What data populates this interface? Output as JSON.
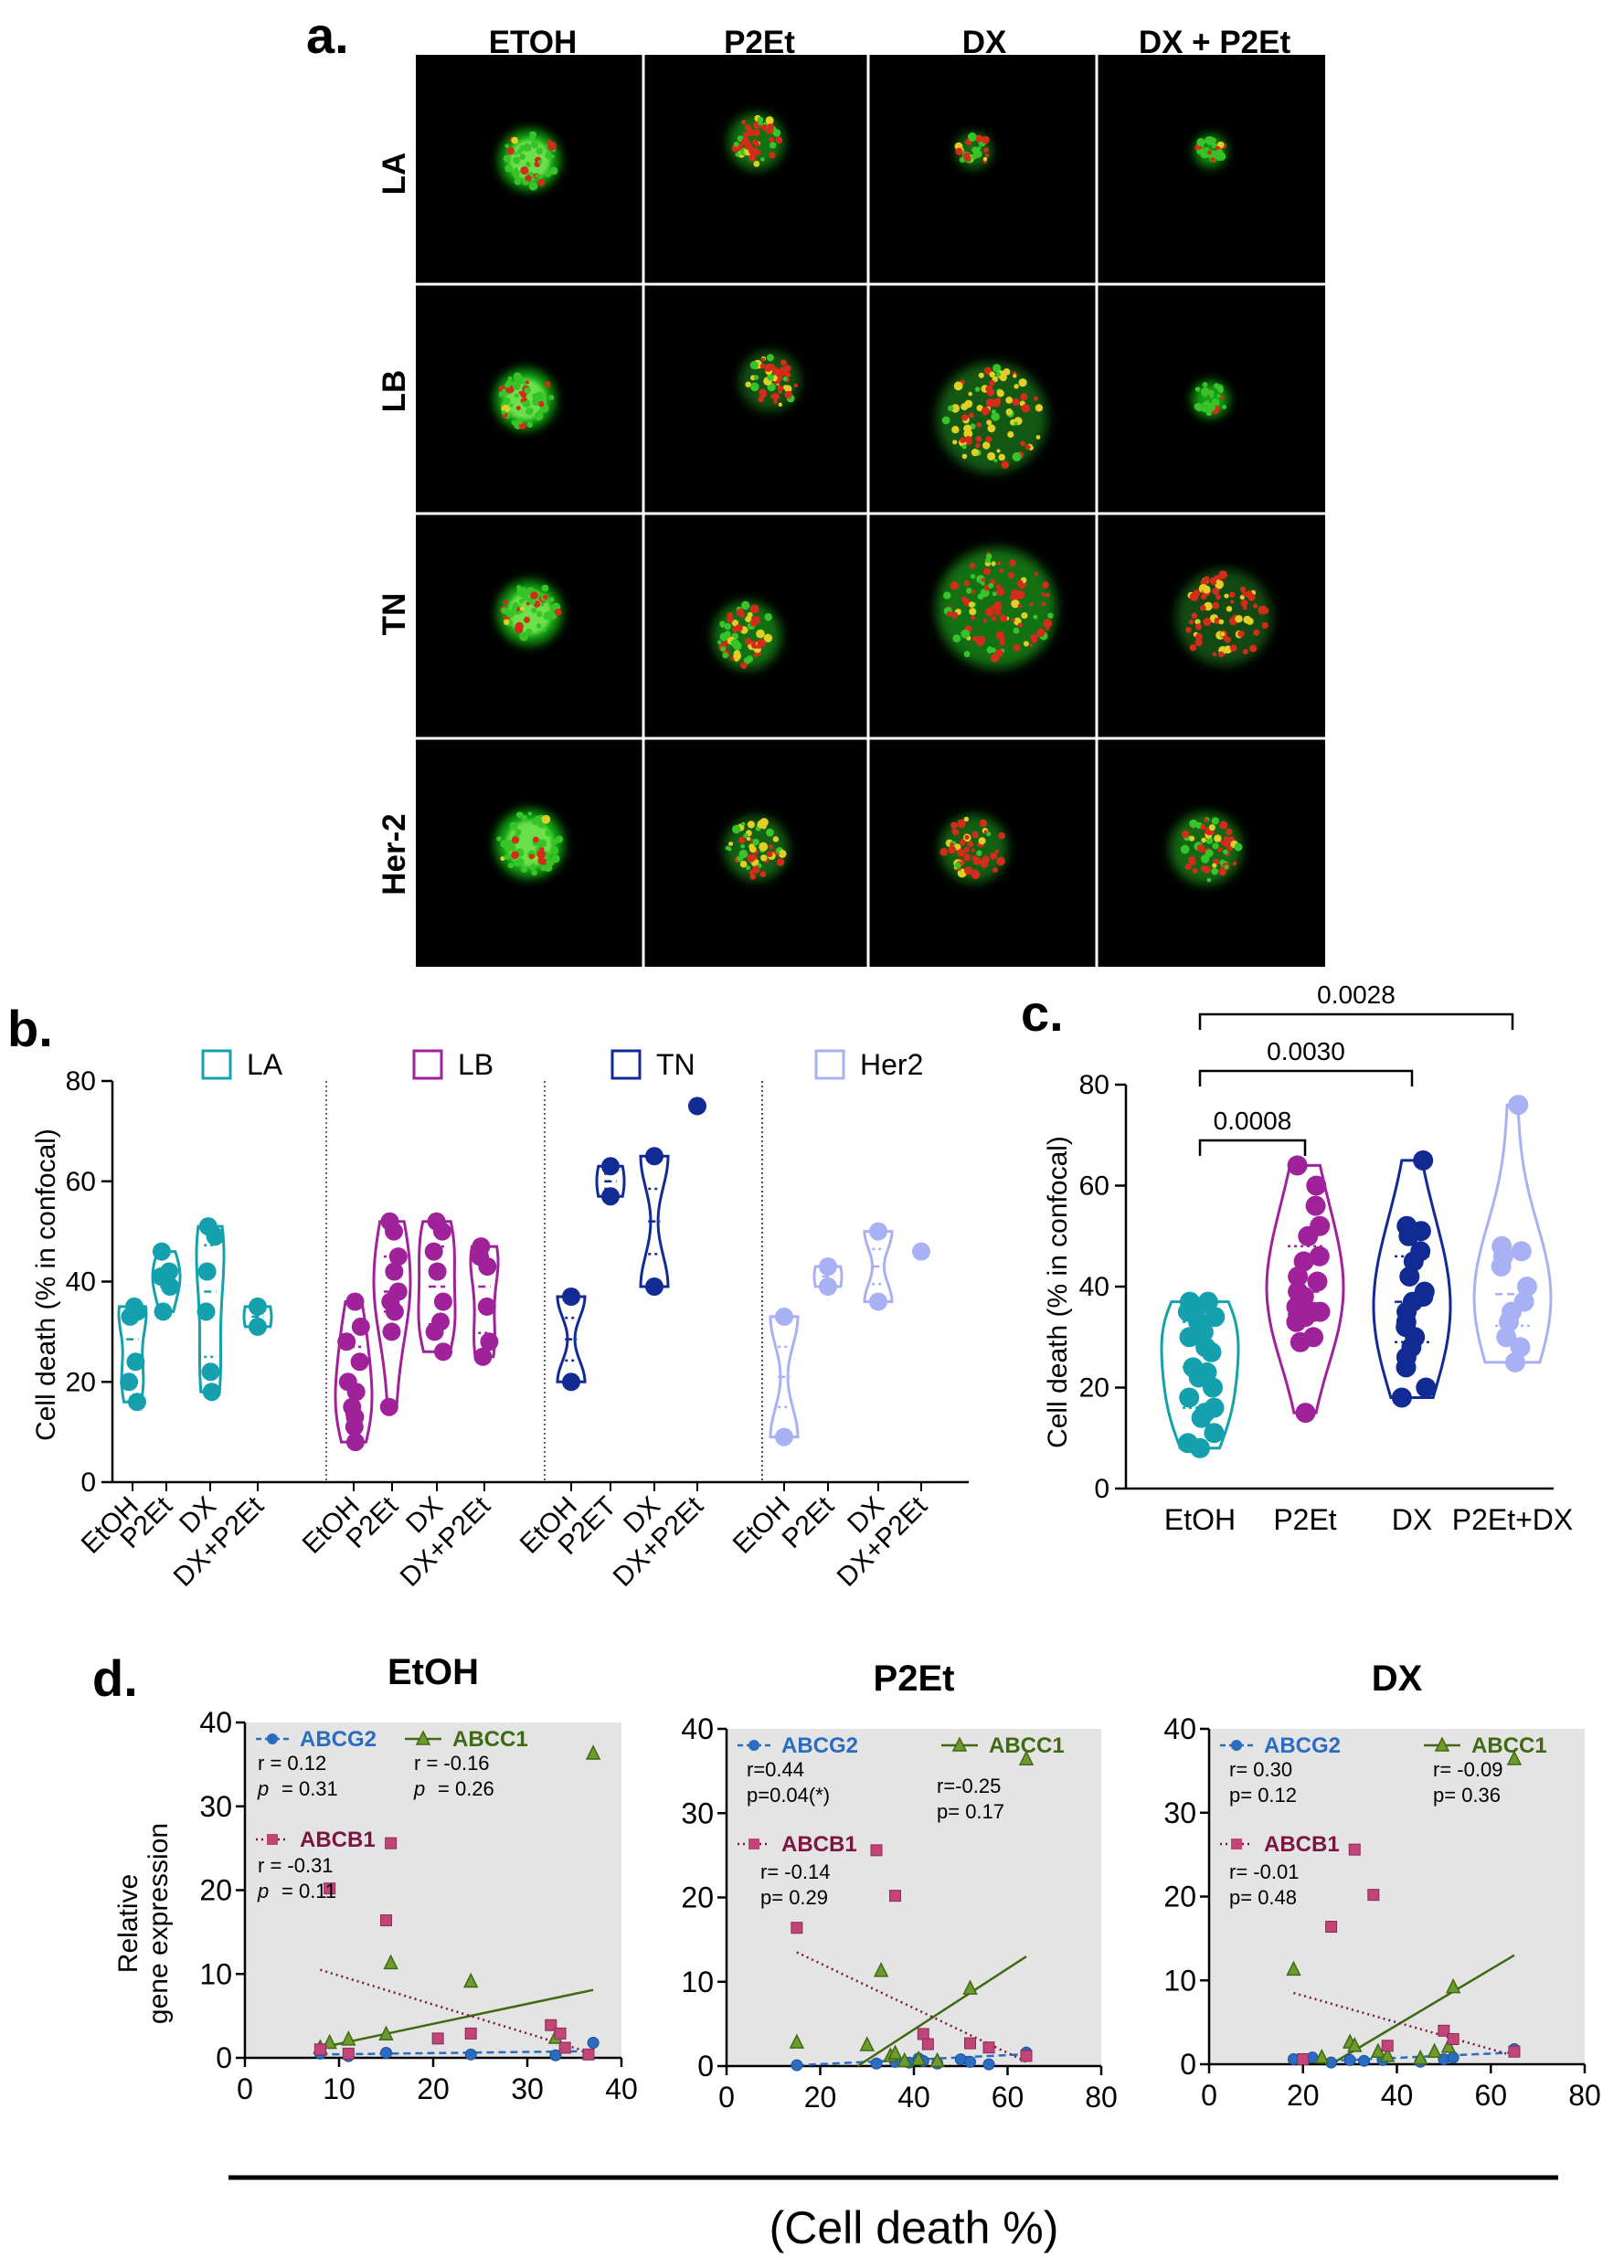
{
  "colors": {
    "LA": "#15a0ae",
    "LB": "#a0229a",
    "TN": "#122a94",
    "Her2": "#a9b1f5",
    "ABCG2": "#2a6cc0",
    "ABCC1": "#3f6a12",
    "ABCB1": "#c2457a",
    "ABCB1_label": "#7a1640",
    "grey_bg": "#e4e4e4",
    "micro_bg": "#000000"
  },
  "panel_a": {
    "letter": "a.",
    "conditions": [
      "ETOH",
      "P2Et",
      "DX",
      "DX + P2Et"
    ],
    "subtypes": [
      "LA",
      "LB",
      "TN",
      "Her-2"
    ]
  },
  "panel_b": {
    "letter": "b.",
    "ylabel": "Cell death (% in confocal)",
    "yticks": [
      "0",
      "20",
      "40",
      "60",
      "80"
    ],
    "legend": [
      "LA",
      "LB",
      "TN",
      "Her2"
    ],
    "groups": [
      {
        "subtype": "LA",
        "xticks": [
          "EtOH",
          "P2Et",
          "DX",
          "DX+P2Et"
        ]
      },
      {
        "subtype": "LB",
        "xticks": [
          "EtOH",
          "P2Et",
          "DX",
          "DX+P2Et"
        ]
      },
      {
        "subtype": "TN",
        "xticks": [
          "EtOH",
          "P2ET",
          "DX",
          "DX+P2Et"
        ]
      },
      {
        "subtype": "Her2",
        "xticks": [
          "EtOH",
          "P2Et",
          "DX",
          "DX+P2Et"
        ]
      }
    ]
  },
  "panel_c": {
    "letter": "c.",
    "ylabel": "Cell death (% in confocal)",
    "yticks": [
      "0",
      "20",
      "40",
      "60",
      "80"
    ],
    "xticks": [
      "EtOH",
      "P2Et",
      "DX",
      "P2Et+DX"
    ],
    "pvalues": [
      "0.0008",
      "0.0030",
      "0.0028"
    ]
  },
  "panel_d": {
    "letter": "d.",
    "ylabel_line1": "Relative",
    "ylabel_line2": "gene expression",
    "xlabel": "(Cell death %)",
    "plots": [
      {
        "title": "EtOH",
        "xticks": [
          "0",
          "10",
          "20",
          "30",
          "40"
        ],
        "yticks": [
          "0",
          "10",
          "20",
          "30",
          "40"
        ],
        "abcg2": {
          "name": "ABCG2",
          "r": "r =   0.12",
          "p_label": "p",
          "p": "=  0.31"
        },
        "abcc1": {
          "name": "ABCC1",
          "r": "r =  -0.16",
          "p_label": "p",
          "p": "=   0.26"
        },
        "abcb1": {
          "name": "ABCB1",
          "r": "r =  -0.31",
          "p_label": "p",
          "p": "=  0.11"
        }
      },
      {
        "title": "P2Et",
        "xticks": [
          "0",
          "20",
          "40",
          "60",
          "80"
        ],
        "yticks": [
          "0",
          "10",
          "20",
          "30",
          "40"
        ],
        "abcg2": {
          "name": "ABCG2",
          "r": "r=0.44",
          "p": "p=0.04(*)"
        },
        "abcc1": {
          "name": "ABCC1",
          "r": "r=-0.25",
          "p": "p= 0.17"
        },
        "abcb1": {
          "name": "ABCB1",
          "r": "r= -0.14",
          "p": "p=  0.29"
        }
      },
      {
        "title": "DX",
        "xticks": [
          "0",
          "20",
          "40",
          "60",
          "80"
        ],
        "yticks": [
          "0",
          "10",
          "20",
          "30",
          "40"
        ],
        "abcg2": {
          "name": "ABCG2",
          "r": "r=   0.30",
          "p": "p=  0.12"
        },
        "abcc1": {
          "name": "ABCC1",
          "r": "r=  -0.09",
          "p": "p=  0.36"
        },
        "abcb1": {
          "name": "ABCB1",
          "r": "r=  -0.01",
          "p": "p=  0.48"
        }
      }
    ]
  },
  "chart_data": [
    {
      "type": "violin",
      "panel": "b",
      "ylabel": "Cell death (% in confocal)",
      "ylim": [
        0,
        80
      ],
      "series": [
        {
          "name": "LA",
          "groups": [
            {
              "label": "EtOH",
              "values": [
                16,
                20,
                24,
                33,
                34,
                35
              ]
            },
            {
              "label": "P2Et",
              "values": [
                34,
                39,
                41,
                42,
                46
              ]
            },
            {
              "label": "DX",
              "values": [
                18,
                22,
                34,
                42,
                49,
                51
              ]
            },
            {
              "label": "DX+P2Et",
              "values": [
                31,
                35
              ]
            }
          ]
        },
        {
          "name": "LB",
          "groups": [
            {
              "label": "EtOH",
              "values": [
                8,
                11,
                13,
                15,
                18,
                20,
                24,
                28,
                31,
                36
              ]
            },
            {
              "label": "P2Et",
              "values": [
                15,
                30,
                34,
                36,
                38,
                42,
                45,
                50,
                52
              ]
            },
            {
              "label": "DX",
              "values": [
                26,
                30,
                32,
                36,
                42,
                46,
                50,
                52
              ]
            },
            {
              "label": "DX+P2Et",
              "values": [
                25,
                28,
                35,
                43,
                45,
                47
              ]
            }
          ]
        },
        {
          "name": "TN",
          "groups": [
            {
              "label": "EtOH",
              "values": [
                20,
                37
              ]
            },
            {
              "label": "P2ET",
              "values": [
                57,
                63
              ]
            },
            {
              "label": "DX",
              "values": [
                39,
                65
              ]
            },
            {
              "label": "DX+P2Et",
              "values": [
                75
              ]
            }
          ]
        },
        {
          "name": "Her2",
          "groups": [
            {
              "label": "EtOH",
              "values": [
                9,
                33
              ]
            },
            {
              "label": "P2Et",
              "values": [
                39,
                43
              ]
            },
            {
              "label": "DX",
              "values": [
                36,
                50
              ]
            },
            {
              "label": "DX+P2Et",
              "values": [
                46
              ]
            }
          ]
        }
      ]
    },
    {
      "type": "violin",
      "panel": "c",
      "ylabel": "Cell death (% in confocal)",
      "ylim": [
        0,
        80
      ],
      "categories": [
        "EtOH",
        "P2Et",
        "DX",
        "P2Et+DX"
      ],
      "series": [
        {
          "name": "EtOH",
          "values": [
            8,
            9,
            11,
            14,
            15,
            16,
            18,
            20,
            22,
            23,
            24,
            27,
            28,
            30,
            31,
            33,
            34,
            35,
            36,
            37,
            37
          ]
        },
        {
          "name": "P2Et",
          "values": [
            15,
            29,
            30,
            33,
            34,
            35,
            35,
            36,
            38,
            39,
            41,
            42,
            45,
            46,
            50,
            52,
            56,
            60,
            64
          ]
        },
        {
          "name": "DX",
          "values": [
            18,
            20,
            24,
            26,
            28,
            30,
            32,
            33,
            35,
            37,
            38,
            39,
            42,
            45,
            47,
            50,
            51,
            52,
            65
          ]
        },
        {
          "name": "P2Et+DX",
          "values": [
            25,
            28,
            30,
            33,
            35,
            37,
            40,
            44,
            46,
            47,
            48,
            76
          ]
        }
      ],
      "comparisons": [
        {
          "pair": [
            "EtOH",
            "P2Et"
          ],
          "p": "0.0008"
        },
        {
          "pair": [
            "EtOH",
            "DX"
          ],
          "p": "0.0030"
        },
        {
          "pair": [
            "EtOH",
            "P2Et+DX"
          ],
          "p": "0.0028"
        }
      ]
    },
    {
      "type": "scatter",
      "panel": "d",
      "title": "EtOH",
      "xlabel": "(Cell death %)",
      "ylabel": "Relative gene expression",
      "xlim": [
        0,
        40
      ],
      "ylim": [
        0,
        40
      ],
      "series": [
        {
          "name": "ABCG2",
          "marker": "circle",
          "x": [
            8,
            11,
            15,
            24,
            33,
            37
          ],
          "y": [
            0.5,
            0.2,
            0.6,
            0.4,
            0.3,
            1.8
          ],
          "trend": [
            [
              8,
              0.4
            ],
            [
              37,
              0.8
            ]
          ]
        },
        {
          "name": "ABCC1",
          "marker": "triangle",
          "x": [
            8,
            9,
            11,
            15,
            15.5,
            24,
            33,
            37
          ],
          "y": [
            1.2,
            1.8,
            2.2,
            2.8,
            11.3,
            9.1,
            2.4,
            36.3
          ],
          "trend": [
            [
              8,
              1.2
            ],
            [
              37,
              8.1
            ]
          ]
        },
        {
          "name": "ABCB1",
          "marker": "square",
          "x": [
            8,
            9,
            11,
            15,
            15.5,
            20.5,
            24,
            32.5,
            33.5,
            34,
            36.5
          ],
          "y": [
            1,
            20.2,
            0.5,
            16.4,
            25.6,
            2.3,
            2.9,
            3.9,
            2.9,
            1.2,
            0.4
          ],
          "trend": [
            [
              8,
              10.5
            ],
            [
              37,
              0.5
            ]
          ]
        }
      ]
    },
    {
      "type": "scatter",
      "panel": "d",
      "title": "P2Et",
      "xlabel": "(Cell death %)",
      "ylabel": "Relative gene expression",
      "xlim": [
        0,
        80
      ],
      "ylim": [
        0,
        40
      ],
      "series": [
        {
          "name": "ABCG2",
          "marker": "circle",
          "x": [
            15,
            32,
            36,
            39,
            41,
            42,
            45,
            50,
            52,
            56,
            64
          ],
          "y": [
            0.1,
            0.3,
            0.5,
            0.4,
            0.9,
            0.6,
            0.3,
            0.8,
            0.5,
            0.2,
            1.6
          ],
          "trend": [
            [
              15,
              0.1
            ],
            [
              64,
              1.4
            ]
          ]
        },
        {
          "name": "ABCC1",
          "marker": "triangle",
          "x": [
            15,
            30,
            33,
            35,
            36,
            38,
            41,
            45,
            52,
            64
          ],
          "y": [
            2.8,
            2.5,
            11.3,
            1.2,
            1.5,
            0.6,
            0.8,
            0.6,
            9.2,
            36.4
          ],
          "trend": [
            [
              28,
              0
            ],
            [
              64,
              13
            ]
          ]
        },
        {
          "name": "ABCB1",
          "marker": "square",
          "x": [
            15,
            32,
            36,
            42,
            43,
            52,
            56,
            64
          ],
          "y": [
            16.4,
            25.6,
            20.2,
            3.8,
            2.6,
            2.7,
            2.2,
            1.2
          ],
          "trend": [
            [
              15,
              13.5
            ],
            [
              64,
              0.5
            ]
          ]
        }
      ]
    },
    {
      "type": "scatter",
      "panel": "d",
      "title": "DX",
      "xlabel": "(Cell death %)",
      "ylabel": "Relative gene expression",
      "xlim": [
        0,
        80
      ],
      "ylim": [
        0,
        40
      ],
      "series": [
        {
          "name": "ABCG2",
          "marker": "circle",
          "x": [
            18,
            22,
            26,
            30,
            33,
            37,
            45,
            50,
            52,
            65
          ],
          "y": [
            0.6,
            0.8,
            0.2,
            0.5,
            0.4,
            0.5,
            0.3,
            0.6,
            0.8,
            1.8
          ],
          "trend": [
            [
              18,
              0.2
            ],
            [
              65,
              1.4
            ]
          ]
        },
        {
          "name": "ABCC1",
          "marker": "triangle",
          "x": [
            18,
            24,
            30,
            31,
            36,
            38,
            45,
            48,
            51,
            52,
            65
          ],
          "y": [
            11.3,
            0.8,
            2.6,
            2.2,
            1.5,
            1,
            0.7,
            1.5,
            2.1,
            9.2,
            36.4
          ],
          "trend": [
            [
              26,
              0
            ],
            [
              65,
              13
            ]
          ]
        },
        {
          "name": "ABCB1",
          "marker": "square",
          "x": [
            20,
            26,
            31,
            35,
            38,
            50,
            52,
            65
          ],
          "y": [
            0.6,
            16.4,
            25.6,
            20.2,
            2.2,
            4,
            3,
            1.5
          ],
          "trend": [
            [
              18,
              8.5
            ],
            [
              65,
              1
            ]
          ]
        }
      ]
    }
  ]
}
